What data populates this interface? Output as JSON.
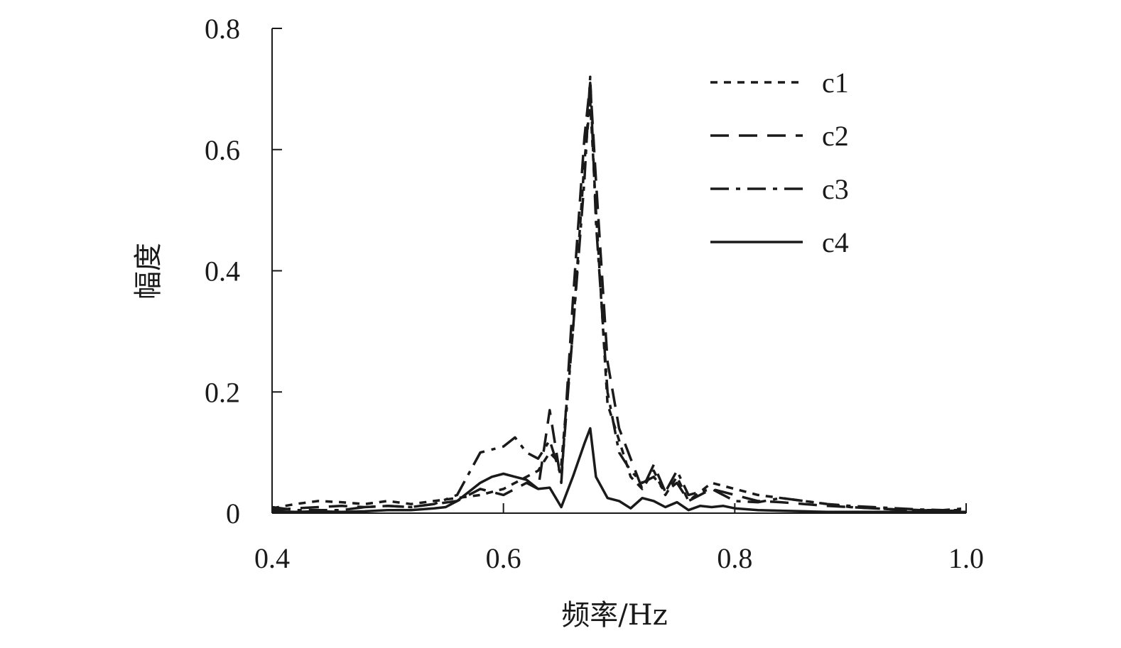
{
  "chart_data": {
    "type": "line",
    "title": "",
    "xlabel": "频率/Hz",
    "ylabel": "幅度",
    "xlim": [
      0.4,
      1.0
    ],
    "ylim": [
      0,
      0.8
    ],
    "xticks": [
      0.4,
      0.6,
      0.8,
      1.0
    ],
    "xtick_labels": [
      "0.4",
      "0.6",
      "0.8",
      "1.0"
    ],
    "yticks": [
      0,
      0.2,
      0.4,
      0.6,
      0.8
    ],
    "ytick_labels": [
      "0",
      "0.2",
      "0.4",
      "0.6",
      "0.8"
    ],
    "grid": false,
    "legend_position": "top-right",
    "series": [
      {
        "name": "c1",
        "style": "dotted",
        "color": "#1a1a1a",
        "x": [
          0.4,
          0.42,
          0.44,
          0.46,
          0.48,
          0.5,
          0.52,
          0.54,
          0.56,
          0.58,
          0.6,
          0.62,
          0.63,
          0.64,
          0.65,
          0.66,
          0.67,
          0.675,
          0.68,
          0.69,
          0.7,
          0.71,
          0.72,
          0.73,
          0.74,
          0.75,
          0.76,
          0.78,
          0.8,
          0.82,
          0.84,
          0.86,
          0.88,
          0.9,
          0.92,
          0.94,
          0.96,
          0.98,
          1.0
        ],
        "values": [
          0.008,
          0.015,
          0.02,
          0.018,
          0.015,
          0.02,
          0.015,
          0.02,
          0.025,
          0.03,
          0.04,
          0.06,
          0.07,
          0.1,
          0.08,
          0.3,
          0.58,
          0.68,
          0.5,
          0.18,
          0.12,
          0.06,
          0.04,
          0.07,
          0.03,
          0.06,
          0.02,
          0.05,
          0.04,
          0.03,
          0.025,
          0.02,
          0.015,
          0.01,
          0.008,
          0.006,
          0.005,
          0.005,
          0.005
        ]
      },
      {
        "name": "c2",
        "style": "dashed",
        "color": "#1a1a1a",
        "x": [
          0.4,
          0.42,
          0.44,
          0.46,
          0.48,
          0.5,
          0.52,
          0.54,
          0.56,
          0.58,
          0.6,
          0.62,
          0.63,
          0.64,
          0.65,
          0.66,
          0.67,
          0.675,
          0.68,
          0.69,
          0.7,
          0.71,
          0.72,
          0.73,
          0.74,
          0.75,
          0.76,
          0.78,
          0.8,
          0.82,
          0.84,
          0.86,
          0.88,
          0.9,
          0.92,
          0.94,
          0.96,
          0.98,
          1.0
        ],
        "values": [
          0.005,
          0.008,
          0.01,
          0.012,
          0.01,
          0.012,
          0.01,
          0.015,
          0.02,
          0.04,
          0.03,
          0.05,
          0.04,
          0.17,
          0.05,
          0.35,
          0.62,
          0.71,
          0.55,
          0.25,
          0.14,
          0.09,
          0.04,
          0.08,
          0.035,
          0.05,
          0.02,
          0.04,
          0.03,
          0.02,
          0.018,
          0.015,
          0.012,
          0.01,
          0.008,
          0.006,
          0.005,
          0.004,
          0.004
        ]
      },
      {
        "name": "c3",
        "style": "dash-dot",
        "color": "#1a1a1a",
        "x": [
          0.4,
          0.42,
          0.44,
          0.46,
          0.48,
          0.5,
          0.52,
          0.54,
          0.56,
          0.58,
          0.6,
          0.61,
          0.62,
          0.63,
          0.64,
          0.65,
          0.66,
          0.67,
          0.675,
          0.68,
          0.69,
          0.7,
          0.71,
          0.72,
          0.73,
          0.74,
          0.75,
          0.76,
          0.78,
          0.8,
          0.82,
          0.84,
          0.86,
          0.88,
          0.9,
          0.92,
          0.94,
          0.96,
          0.98,
          1.0
        ],
        "values": [
          0.01,
          0.005,
          0.005,
          0.005,
          0.01,
          0.012,
          0.01,
          0.015,
          0.03,
          0.1,
          0.11,
          0.125,
          0.1,
          0.09,
          0.12,
          0.06,
          0.3,
          0.55,
          0.72,
          0.48,
          0.2,
          0.1,
          0.07,
          0.05,
          0.06,
          0.035,
          0.07,
          0.03,
          0.04,
          0.02,
          0.018,
          0.025,
          0.02,
          0.015,
          0.012,
          0.01,
          0.008,
          0.006,
          0.005,
          0.008
        ]
      },
      {
        "name": "c4",
        "style": "solid",
        "color": "#1a1a1a",
        "x": [
          0.4,
          0.42,
          0.44,
          0.46,
          0.48,
          0.5,
          0.52,
          0.54,
          0.55,
          0.56,
          0.57,
          0.58,
          0.59,
          0.6,
          0.61,
          0.62,
          0.63,
          0.64,
          0.65,
          0.66,
          0.67,
          0.675,
          0.68,
          0.69,
          0.7,
          0.71,
          0.72,
          0.73,
          0.74,
          0.75,
          0.76,
          0.77,
          0.78,
          0.79,
          0.8,
          0.82,
          0.84,
          0.86,
          0.88,
          0.9,
          0.92,
          0.94,
          0.96,
          0.98,
          1.0
        ],
        "values": [
          0.003,
          0.002,
          0.003,
          0.002,
          0.003,
          0.005,
          0.005,
          0.008,
          0.01,
          0.02,
          0.035,
          0.05,
          0.06,
          0.065,
          0.06,
          0.055,
          0.04,
          0.042,
          0.01,
          0.06,
          0.115,
          0.14,
          0.06,
          0.025,
          0.02,
          0.008,
          0.025,
          0.02,
          0.01,
          0.018,
          0.005,
          0.012,
          0.01,
          0.012,
          0.008,
          0.005,
          0.004,
          0.003,
          0.002,
          0.002,
          0.002,
          0.002,
          0.002,
          0.002,
          0.002
        ]
      }
    ]
  }
}
